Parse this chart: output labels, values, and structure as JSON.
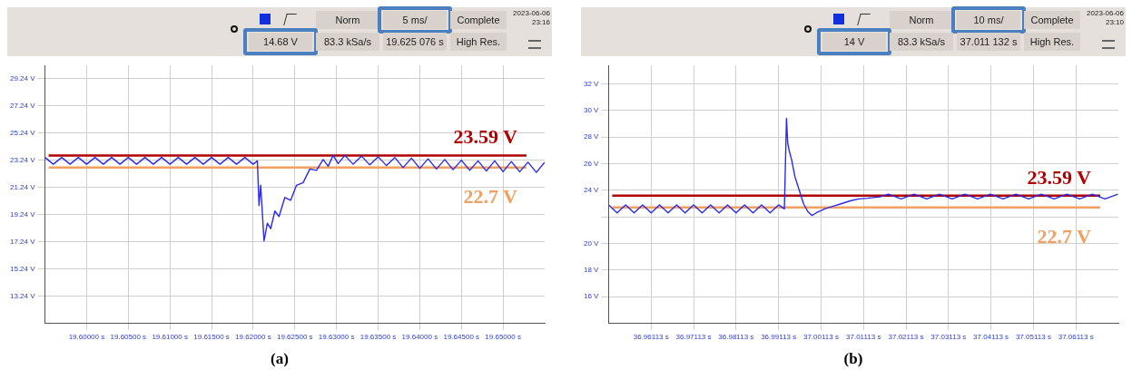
{
  "chart_data": [
    {
      "type": "line",
      "xlim": [
        19.595,
        19.655
      ],
      "ylim": [
        11.24,
        30.24
      ],
      "xticks": [
        {
          "value": 19.6,
          "label": "19.60000 s"
        },
        {
          "value": 19.605,
          "label": "19.60500 s"
        },
        {
          "value": 19.61,
          "label": "19.61000 s"
        },
        {
          "value": 19.615,
          "label": "19.61500 s"
        },
        {
          "value": 19.62,
          "label": "19.62000 s"
        },
        {
          "value": 19.625,
          "label": "19.62500 s"
        },
        {
          "value": 19.63,
          "label": "19.63000 s"
        },
        {
          "value": 19.635,
          "label": "19.63500 s"
        },
        {
          "value": 19.64,
          "label": "19.64000 s"
        },
        {
          "value": 19.645,
          "label": "19.64500 s"
        },
        {
          "value": 19.65,
          "label": "19.65000 s"
        }
      ],
      "yticks": [
        {
          "value": 13.24,
          "label": "13.24 V"
        },
        {
          "value": 15.24,
          "label": "15.24 V"
        },
        {
          "value": 17.24,
          "label": "17.24 V"
        },
        {
          "value": 19.24,
          "label": "19.24 V"
        },
        {
          "value": 21.24,
          "label": "21.24 V"
        },
        {
          "value": 23.24,
          "label": "23.24 V"
        },
        {
          "value": 25.24,
          "label": "25.24 V"
        },
        {
          "value": 27.24,
          "label": "27.24 V"
        },
        {
          "value": 29.24,
          "label": "29.24 V"
        }
      ],
      "grid": true,
      "legend": false,
      "marker": "none",
      "line_style": "solid",
      "series": [
        {
          "color": "#2a2af0",
          "x": [
            19.595,
            19.596,
            19.597,
            19.598,
            19.599,
            19.6,
            19.601,
            19.602,
            19.603,
            19.604,
            19.605,
            19.606,
            19.607,
            19.608,
            19.609,
            19.61,
            19.611,
            19.612,
            19.613,
            19.614,
            19.615,
            19.616,
            19.617,
            19.618,
            19.619,
            19.62,
            19.6205,
            19.6207,
            19.6209,
            19.6213,
            19.6217,
            19.6221,
            19.6226,
            19.6231,
            19.6238,
            19.6245,
            19.6252,
            19.626,
            19.6268,
            19.6276,
            19.6284,
            19.629,
            19.6296,
            19.6302,
            19.631,
            19.632,
            19.633,
            19.634,
            19.635,
            19.636,
            19.637,
            19.638,
            19.639,
            19.64,
            19.641,
            19.642,
            19.643,
            19.644,
            19.645,
            19.646,
            19.647,
            19.648,
            19.649,
            19.65,
            19.651,
            19.652,
            19.653,
            19.654,
            19.655
          ],
          "values": [
            23.45,
            22.95,
            23.45,
            22.95,
            23.45,
            22.95,
            23.45,
            22.95,
            23.45,
            22.95,
            23.45,
            22.95,
            23.45,
            22.95,
            23.45,
            22.95,
            23.45,
            22.95,
            23.45,
            22.95,
            23.45,
            22.95,
            23.45,
            22.95,
            23.45,
            22.95,
            23.2,
            19.9,
            21.4,
            17.3,
            18.6,
            18.2,
            19.5,
            19.1,
            20.5,
            20.3,
            21.4,
            21.6,
            22.6,
            22.5,
            23.3,
            22.8,
            23.6,
            23.0,
            23.6,
            22.95,
            23.55,
            22.9,
            23.5,
            22.85,
            23.45,
            22.7,
            23.4,
            22.65,
            23.35,
            22.6,
            23.3,
            22.55,
            23.25,
            22.5,
            23.2,
            22.45,
            23.2,
            22.4,
            23.15,
            22.4,
            23.1,
            22.35,
            23.1
          ]
        }
      ],
      "ref_lines": [
        {
          "axis": "y",
          "value": 23.59,
          "label": "23.59 V",
          "color": "#b00000"
        },
        {
          "axis": "y",
          "value": 22.7,
          "label": "22.7 V",
          "color": "#f0a060"
        }
      ],
      "annotations": [
        "Norm",
        "5 ms/",
        "Complete",
        "2023-06-06 23:16",
        "14.68 V",
        "83.3 kSa/s",
        "19.625 076 s",
        "High Res.",
        "(a)"
      ]
    },
    {
      "type": "line",
      "xlim": [
        36.95113,
        37.07113
      ],
      "ylim": [
        14,
        33.4
      ],
      "xticks": [
        {
          "value": 36.96113,
          "label": "36.96113 s"
        },
        {
          "value": 36.97113,
          "label": "36.97113 s"
        },
        {
          "value": 36.98113,
          "label": "36.98113 s"
        },
        {
          "value": 36.99113,
          "label": "36.99113 s"
        },
        {
          "value": 37.00113,
          "label": "37.00113 s"
        },
        {
          "value": 37.01113,
          "label": "37.01113 s"
        },
        {
          "value": 37.02113,
          "label": "37.02113 s"
        },
        {
          "value": 37.03113,
          "label": "37.03113 s"
        },
        {
          "value": 37.04113,
          "label": "37.04113 s"
        },
        {
          "value": 37.05113,
          "label": "37.05113 s"
        },
        {
          "value": 37.06113,
          "label": "37.06113 s"
        }
      ],
      "yticks": [
        {
          "value": 16,
          "label": "16 V"
        },
        {
          "value": 18,
          "label": "18 V"
        },
        {
          "value": 20,
          "label": "20 V"
        },
        {
          "value": 22,
          "label": null
        },
        {
          "value": 24,
          "label": "24 V"
        },
        {
          "value": 26,
          "label": "26 V"
        },
        {
          "value": 28,
          "label": "28 V"
        },
        {
          "value": 30,
          "label": "30 V"
        },
        {
          "value": 32,
          "label": "32 V"
        }
      ],
      "grid": true,
      "legend": false,
      "marker": "none",
      "line_style": "solid",
      "series": [
        {
          "color": "#2a2af0",
          "x": [
            36.95113,
            36.95313,
            36.95513,
            36.95713,
            36.95913,
            36.96113,
            36.96313,
            36.96513,
            36.96713,
            36.96913,
            36.97113,
            36.97313,
            36.97513,
            36.97713,
            36.97913,
            36.98113,
            36.98313,
            36.98513,
            36.98713,
            36.98913,
            36.99113,
            36.9925,
            36.993,
            36.9933,
            36.9937,
            36.9942,
            36.995,
            36.996,
            36.997,
            36.998,
            36.999,
            37.0,
            37.002,
            37.004,
            37.006,
            37.008,
            37.01,
            37.012,
            37.015,
            37.017,
            37.02,
            37.023,
            37.026,
            37.029,
            37.032,
            37.035,
            37.038,
            37.041,
            37.044,
            37.047,
            37.05,
            37.053,
            37.056,
            37.059,
            37.062,
            37.065,
            37.068,
            37.071
          ],
          "values": [
            22.9,
            22.3,
            22.9,
            22.3,
            22.9,
            22.3,
            22.9,
            22.3,
            22.9,
            22.3,
            22.9,
            22.3,
            22.9,
            22.3,
            22.9,
            22.3,
            22.9,
            22.3,
            22.9,
            22.3,
            22.9,
            22.6,
            29.4,
            27.5,
            26.9,
            26.3,
            25.0,
            24.0,
            23.0,
            22.4,
            22.1,
            22.3,
            22.6,
            22.8,
            23.0,
            23.2,
            23.35,
            23.4,
            23.5,
            23.7,
            23.35,
            23.7,
            23.35,
            23.7,
            23.35,
            23.7,
            23.35,
            23.7,
            23.35,
            23.7,
            23.35,
            23.7,
            23.35,
            23.7,
            23.35,
            23.7,
            23.35,
            23.7
          ]
        }
      ],
      "ref_lines": [
        {
          "axis": "y",
          "value": 23.59,
          "label": "23.59 V",
          "color": "#b00000"
        },
        {
          "axis": "y",
          "value": 22.7,
          "label": "22.7 V",
          "color": "#f0a060"
        }
      ],
      "annotations": [
        "Norm",
        "10 ms/",
        "Complete",
        "2023-06-06 23:10",
        "14 V",
        "83.3 kSa/s",
        "37.011 132 s",
        "High Res.",
        "(b)"
      ]
    }
  ]
}
